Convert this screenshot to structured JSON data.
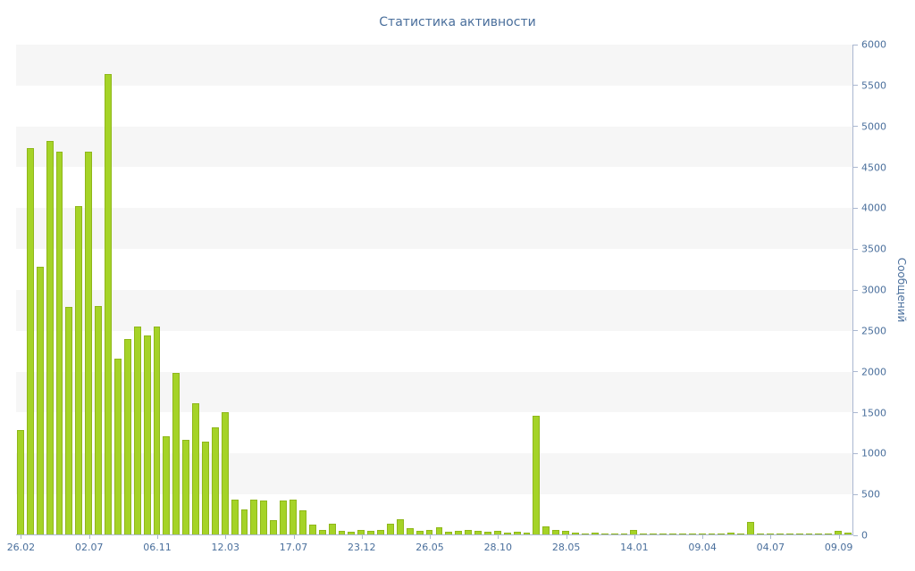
{
  "chart_data": {
    "type": "bar",
    "title": "Статистика активности",
    "ylabel": "Сообщений",
    "xlabel": "",
    "ylim": [
      0,
      6000
    ],
    "y_tick_step": 500,
    "y_tick_labels": [
      "0",
      "500",
      "1000",
      "1500",
      "2000",
      "2500",
      "3000",
      "3500",
      "4000",
      "4500",
      "5000",
      "5500",
      "6000"
    ],
    "x_ticks": [
      {
        "label": "26.02",
        "index": 0
      },
      {
        "label": "02.07",
        "index": 7
      },
      {
        "label": "06.11",
        "index": 14
      },
      {
        "label": "12.03",
        "index": 21
      },
      {
        "label": "17.07",
        "index": 28
      },
      {
        "label": "23.12",
        "index": 35
      },
      {
        "label": "26.05",
        "index": 42
      },
      {
        "label": "28.10",
        "index": 49
      },
      {
        "label": "28.05",
        "index": 56
      },
      {
        "label": "14.01",
        "index": 63
      },
      {
        "label": "09.04",
        "index": 70
      },
      {
        "label": "04.07",
        "index": 77
      },
      {
        "label": "09.09",
        "index": 84
      }
    ],
    "values": [
      1280,
      4720,
      3270,
      4810,
      4680,
      2780,
      4020,
      4680,
      2790,
      5630,
      2150,
      2390,
      2540,
      2430,
      2540,
      1200,
      1980,
      1160,
      1600,
      1140,
      1310,
      1500,
      430,
      310,
      430,
      420,
      180,
      420,
      430,
      290,
      120,
      60,
      130,
      40,
      30,
      60,
      40,
      60,
      130,
      190,
      80,
      40,
      60,
      90,
      30,
      40,
      60,
      40,
      30,
      40,
      20,
      30,
      20,
      1450,
      100,
      60,
      40,
      20,
      10,
      20,
      10,
      10,
      10,
      60,
      10,
      10,
      10,
      10,
      10,
      10,
      10,
      10,
      10,
      20,
      10,
      150,
      10,
      10,
      10,
      10,
      10,
      10,
      10,
      10,
      40,
      20
    ],
    "grid": "horizontal-bands-every-500",
    "legend": "none",
    "colors": {
      "bar": "#a5d327",
      "bar_border": "#8fb71a",
      "axis": "#aab7d0",
      "label": "#4a6f9c",
      "stripe": "#f6f6f6",
      "background": "#ffffff"
    }
  }
}
